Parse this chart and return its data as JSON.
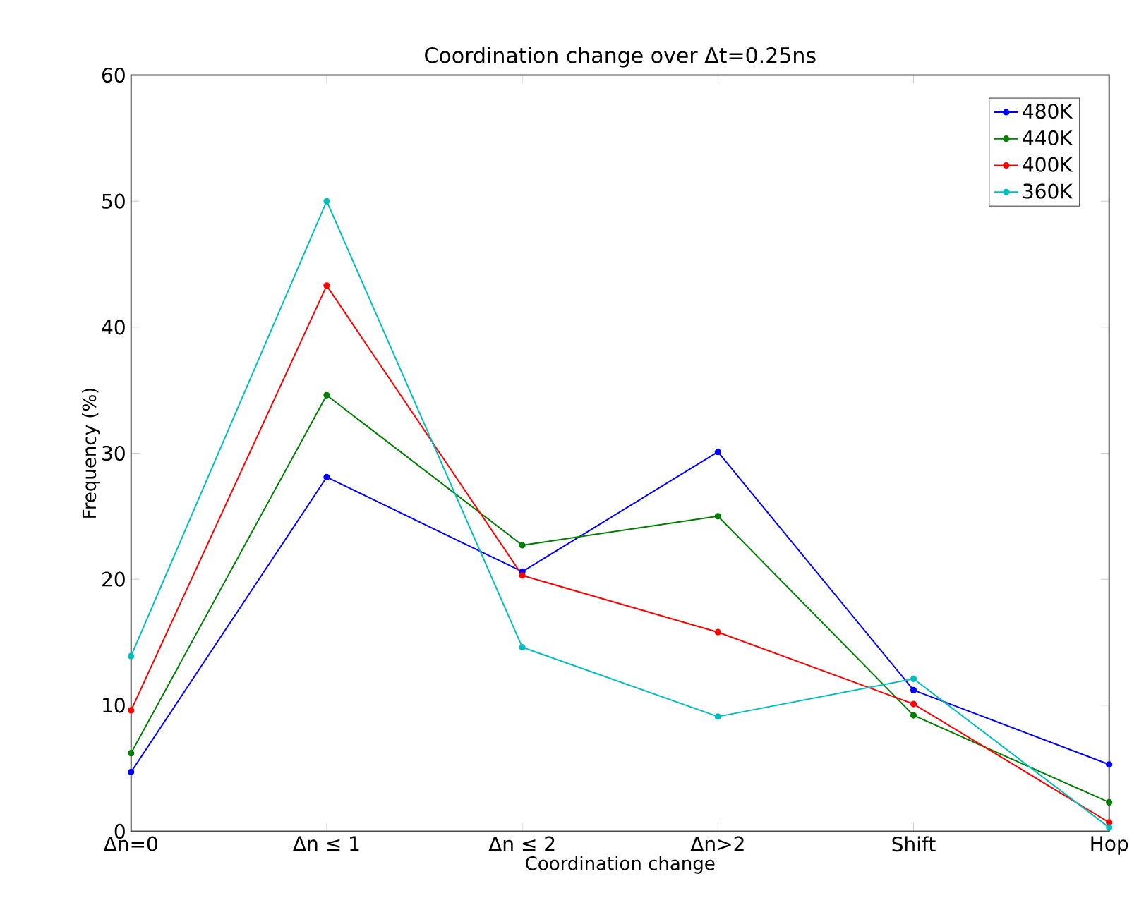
{
  "chart_data": {
    "type": "line",
    "title": "Coordination change over Δt=0.25ns",
    "xlabel": "Coordination change",
    "ylabel": "Frequency (%)",
    "categories": [
      "Δn=0",
      "Δn ≤ 1",
      "Δn ≤ 2",
      "Δn>2",
      "Shift",
      "Hop"
    ],
    "series": [
      {
        "name": "480K",
        "color": "#0000ff",
        "values": [
          4.7,
          28.1,
          20.6,
          30.1,
          11.2,
          5.3
        ]
      },
      {
        "name": "440K",
        "color": "#008000",
        "values": [
          6.2,
          34.6,
          22.7,
          25.0,
          9.2,
          2.3
        ]
      },
      {
        "name": "400K",
        "color": "#ff0000",
        "values": [
          9.6,
          43.3,
          20.3,
          15.8,
          10.1,
          0.7
        ]
      },
      {
        "name": "360K",
        "color": "#00bfbf",
        "values": [
          13.9,
          50.0,
          14.6,
          9.1,
          12.1,
          0.3
        ]
      }
    ],
    "ylim": [
      0,
      60
    ],
    "yticks": [
      0,
      10,
      20,
      30,
      40,
      50,
      60
    ],
    "grid": false,
    "legend": "top right",
    "marker": "circle",
    "line_style": "solid"
  }
}
